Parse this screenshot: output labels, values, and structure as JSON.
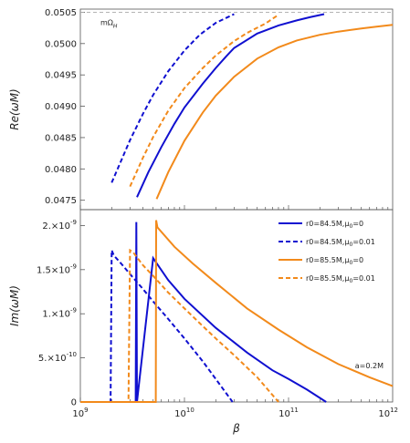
{
  "chart_data": [
    {
      "panel": "top",
      "type": "line",
      "ylabel": "Re(ωM)",
      "xscale": "log",
      "xlim": [
        1000000000.0,
        1000000000000.0
      ],
      "ylim": [
        0.04735,
        0.05055
      ],
      "yticks": [
        0.0475,
        0.048,
        0.0485,
        0.049,
        0.0495,
        0.05,
        0.0505
      ],
      "ytick_labels": [
        "0.0475",
        "0.0480",
        "0.0485",
        "0.0490",
        "0.0495",
        "0.0500",
        "0.0505"
      ],
      "reference_line": {
        "value": 0.0505,
        "label": "mΩ",
        "label_sub": "H",
        "style": "dashed",
        "color": "#aaaaaa"
      },
      "series": [
        {
          "name": "r0=84.5M,μ0=0",
          "color": "#1010d0",
          "dash": "solid",
          "x": [
            3500000000.0,
            4500000000.0,
            6000000000.0,
            8000000000.0,
            10000000000.0,
            15000000000.0,
            20000000000.0,
            25000000000.0,
            30000000000.0,
            50000000000.0,
            80000000000.0,
            120000000000.0,
            160000000000.0,
            220000000000.0
          ],
          "y": [
            0.04755,
            0.04795,
            0.04835,
            0.04872,
            0.04898,
            0.04936,
            0.04961,
            0.04979,
            0.04993,
            0.05016,
            0.05029,
            0.05037,
            0.05042,
            0.05047
          ]
        },
        {
          "name": "r0=84.5M,μ0=0.01",
          "color": "#1010d0",
          "dash": "dashed",
          "x": [
            2000000000.0,
            3000000000.0,
            4000000000.0,
            5000000000.0,
            7000000000.0,
            10000000000.0,
            14000000000.0,
            20000000000.0,
            30000000000.0
          ],
          "y": [
            0.04778,
            0.04846,
            0.04888,
            0.04918,
            0.04956,
            0.04989,
            0.05014,
            0.05033,
            0.05047
          ]
        },
        {
          "name": "r0=85.5M,μ0=0",
          "color": "#f28a1b",
          "dash": "solid",
          "x": [
            5400000000.0,
            7000000000.0,
            10000000000.0,
            15000000000.0,
            20000000000.0,
            30000000000.0,
            50000000000.0,
            80000000000.0,
            120000000000.0,
            200000000000.0,
            300000000000.0,
            500000000000.0,
            700000000000.0,
            1000000000000.0
          ],
          "y": [
            0.04752,
            0.04795,
            0.04845,
            0.0489,
            0.04917,
            0.04947,
            0.04976,
            0.04994,
            0.05005,
            0.05014,
            0.05019,
            0.05024,
            0.05027,
            0.0503
          ]
        },
        {
          "name": "r0=85.5M,μ0=0.01",
          "color": "#f28a1b",
          "dash": "dashed",
          "x": [
            3000000000.0,
            4000000000.0,
            5000000000.0,
            7000000000.0,
            10000000000.0,
            15000000000.0,
            20000000000.0,
            30000000000.0,
            40000000000.0,
            60000000000.0,
            80000000000.0
          ],
          "y": [
            0.04772,
            0.04818,
            0.04851,
            0.04893,
            0.04929,
            0.04961,
            0.04981,
            0.05004,
            0.05017,
            0.05032,
            0.05046
          ]
        }
      ]
    },
    {
      "panel": "bottom",
      "type": "line",
      "xlabel": "β",
      "ylabel": "Im(ωM)",
      "xscale": "log",
      "xlim": [
        1000000000.0,
        1000000000000.0
      ],
      "ylim": [
        0,
        2.18e-09
      ],
      "xticks": [
        {
          "value": 1000000000.0,
          "base": "10",
          "exp": "9"
        },
        {
          "value": 10000000000.0,
          "base": "10",
          "exp": "10"
        },
        {
          "value": 100000000000.0,
          "base": "10",
          "exp": "11"
        },
        {
          "value": 1000000000000.0,
          "base": "10",
          "exp": "12"
        }
      ],
      "yticks": [
        {
          "value": 0,
          "mant": "0",
          "exp": ""
        },
        {
          "value": 5e-10,
          "mant": "5.×10",
          "exp": "-10"
        },
        {
          "value": 1e-09,
          "mant": "1.×10",
          "exp": "-9"
        },
        {
          "value": 1.5e-09,
          "mant": "1.5×10",
          "exp": "-9"
        },
        {
          "value": 2e-09,
          "mant": "2.×10",
          "exp": "-9"
        }
      ],
      "annotation": "a=0.2M",
      "legend_position": "top-right",
      "series": [
        {
          "name": "r0=84.5M,μ0=0",
          "name_main": "r0=84.5M,μ",
          "name_sub": "0",
          "name_tail": "=0",
          "color": "#1010d0",
          "dash": "solid",
          "x": [
            1000000000.0,
            3300000000.0,
            3400000000.0,
            3450000000.0,
            3500000000.0,
            5000000000.0,
            7000000000.0,
            10000000000.0,
            20000000000.0,
            40000000000.0,
            70000000000.0,
            100000000000.0,
            150000000000.0,
            230000000000.0
          ],
          "y": [
            0,
            0,
            0,
            2.04e-09,
            0,
            1.63e-09,
            1.38e-09,
            1.17e-09,
            8.4e-10,
            5.6e-10,
            3.6e-10,
            2.6e-10,
            1.4e-10,
            0
          ]
        },
        {
          "name": "r0=84.5M,μ0=0.01",
          "name_main": "r0=84.5M,μ",
          "name_sub": "0",
          "name_tail": "=0.01",
          "color": "#1010d0",
          "dash": "dashed",
          "x": [
            1000000000.0,
            1950000000.0,
            2000000000.0,
            2100000000.0,
            2500000000.0,
            3000000000.0,
            4000000000.0,
            5000000000.0,
            7000000000.0,
            10000000000.0,
            15000000000.0,
            20000000000.0,
            29000000000.0
          ],
          "y": [
            0,
            0,
            1.72e-09,
            1.66e-09,
            1.56e-09,
            1.45e-09,
            1.28e-09,
            1.14e-09,
            9.4e-10,
            7.2e-10,
            4.6e-10,
            2.6e-10,
            0
          ]
        },
        {
          "name": "r0=85.5M,μ0=0",
          "name_main": "r0=85.5M,μ",
          "name_sub": "0",
          "name_tail": "=0",
          "color": "#f28a1b",
          "dash": "solid",
          "x": [
            1000000000.0,
            5200000000.0,
            5300000000.0,
            5350000000.0,
            5500000000.0,
            8000000000.0,
            12000000000.0,
            20000000000.0,
            40000000000.0,
            80000000000.0,
            150000000000.0,
            300000000000.0,
            600000000000.0,
            1000000000000.0
          ],
          "y": [
            0,
            0,
            0,
            2.06e-09,
            1.98e-09,
            1.76e-09,
            1.57e-09,
            1.35e-09,
            1.06e-09,
            8.2e-10,
            6.2e-10,
            4.3e-10,
            2.8e-10,
            1.8e-10
          ]
        },
        {
          "name": "r0=85.5M,μ0=0.01",
          "name_main": "r0=85.5M,μ",
          "name_sub": "0",
          "name_tail": "=0.01",
          "color": "#f28a1b",
          "dash": "dashed",
          "x": [
            1000000000.0,
            2900000000.0,
            3000000000.0,
            3200000000.0,
            4000000000.0,
            5000000000.0,
            7000000000.0,
            10000000000.0,
            15000000000.0,
            20000000000.0,
            30000000000.0,
            50000000000.0,
            80000000000.0
          ],
          "y": [
            0,
            0,
            1.72e-09,
            1.7e-09,
            1.55e-09,
            1.43e-09,
            1.24e-09,
            1.06e-09,
            8.6e-10,
            7.2e-10,
            5.3e-10,
            2.8e-10,
            0
          ]
        }
      ]
    }
  ]
}
